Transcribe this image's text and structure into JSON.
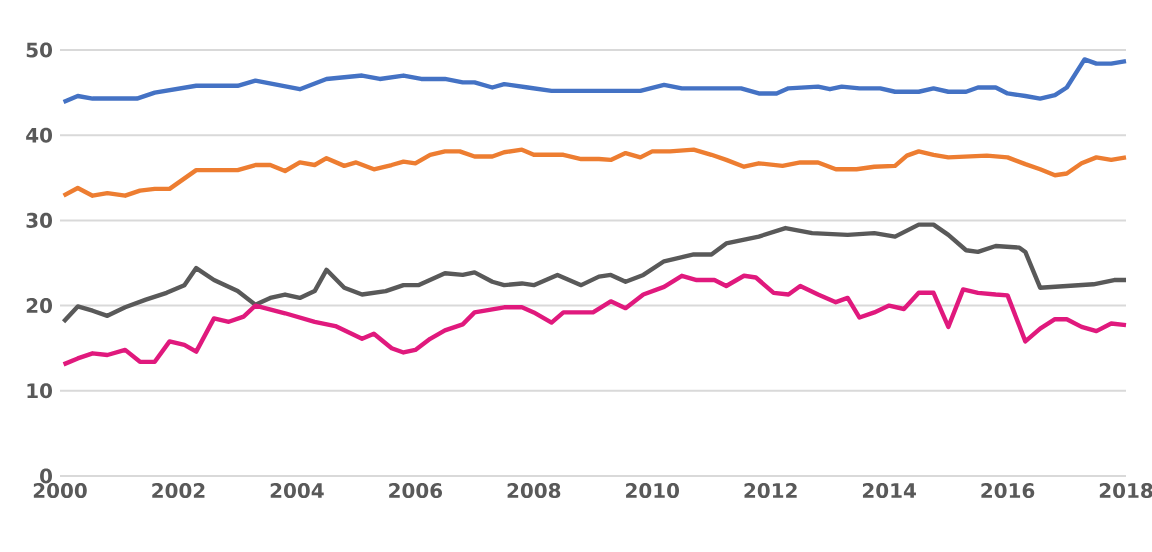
{
  "chart_data": {
    "type": "line",
    "xlim": [
      2000,
      2018
    ],
    "ylim": [
      0,
      50
    ],
    "xticks": [
      2000,
      2002,
      2004,
      2006,
      2008,
      2010,
      2012,
      2014,
      2016,
      2018
    ],
    "yticks": [
      0,
      10,
      20,
      30,
      40,
      50
    ],
    "grid": "y",
    "marker": "none",
    "line_style": "solid",
    "series": [
      {
        "color": "#4472c4",
        "x": [
          2000.06,
          2000.3,
          2000.55,
          2001.3,
          2001.6,
          2002.3,
          2003.0,
          2003.3,
          2004.05,
          2004.5,
          2005.1,
          2005.4,
          2005.8,
          2006.1,
          2006.5,
          2006.8,
          2007.0,
          2007.3,
          2007.5,
          2007.9,
          2008.3,
          2009.1,
          2009.8,
          2010.2,
          2010.5,
          2011.5,
          2011.8,
          2012.1,
          2012.3,
          2012.8,
          2013.0,
          2013.2,
          2013.5,
          2013.85,
          2014.1,
          2014.5,
          2014.75,
          2015.0,
          2015.3,
          2015.5,
          2015.8,
          2016.0,
          2016.3,
          2016.55,
          2016.8,
          2017.0,
          2017.3,
          2017.5,
          2017.75,
          2018.0
        ],
        "values": [
          43.9,
          44.6,
          44.3,
          44.3,
          45.0,
          45.8,
          45.8,
          46.4,
          45.4,
          46.6,
          47.0,
          46.6,
          47.0,
          46.6,
          46.6,
          46.2,
          46.2,
          45.6,
          46.0,
          45.6,
          45.2,
          45.2,
          45.2,
          45.9,
          45.5,
          45.5,
          44.9,
          44.9,
          45.5,
          45.7,
          45.4,
          45.7,
          45.5,
          45.5,
          45.1,
          45.1,
          45.5,
          45.1,
          45.1,
          45.6,
          45.6,
          44.9,
          44.6,
          44.3,
          44.7,
          45.6,
          48.9,
          48.4,
          48.4,
          48.7
        ]
      },
      {
        "color": "#ed7d31",
        "x": [
          2000.06,
          2000.3,
          2000.55,
          2000.8,
          2001.1,
          2001.35,
          2001.6,
          2001.85,
          2002.3,
          2003.0,
          2003.3,
          2003.55,
          2003.8,
          2004.05,
          2004.3,
          2004.5,
          2004.8,
          2005.0,
          2005.3,
          2005.6,
          2005.8,
          2006.0,
          2006.25,
          2006.5,
          2006.75,
          2007.0,
          2007.3,
          2007.5,
          2007.8,
          2008.0,
          2008.5,
          2008.8,
          2009.1,
          2009.3,
          2009.55,
          2009.8,
          2010.0,
          2010.3,
          2010.7,
          2011.0,
          2011.25,
          2011.55,
          2011.8,
          2012.2,
          2012.5,
          2012.8,
          2013.1,
          2013.45,
          2013.75,
          2014.1,
          2014.3,
          2014.5,
          2014.75,
          2015.0,
          2015.65,
          2016.0,
          2016.3,
          2016.55,
          2016.8,
          2017.0,
          2017.25,
          2017.5,
          2017.75,
          2018.0
        ],
        "values": [
          32.9,
          33.8,
          32.9,
          33.2,
          32.9,
          33.5,
          33.7,
          33.7,
          35.9,
          35.9,
          36.5,
          36.5,
          35.8,
          36.8,
          36.5,
          37.3,
          36.4,
          36.8,
          36.0,
          36.5,
          36.9,
          36.7,
          37.7,
          38.1,
          38.1,
          37.5,
          37.5,
          38.0,
          38.3,
          37.7,
          37.7,
          37.2,
          37.2,
          37.1,
          37.9,
          37.4,
          38.1,
          38.1,
          38.3,
          37.7,
          37.1,
          36.3,
          36.7,
          36.4,
          36.8,
          36.8,
          36.0,
          36.0,
          36.3,
          36.4,
          37.6,
          38.1,
          37.7,
          37.4,
          37.6,
          37.4,
          36.6,
          36.0,
          35.3,
          35.5,
          36.7,
          37.4,
          37.1,
          37.4
        ]
      },
      {
        "color": "#595959",
        "x": [
          2000.06,
          2000.3,
          2000.55,
          2000.8,
          2001.1,
          2001.45,
          2001.8,
          2002.1,
          2002.3,
          2002.6,
          2003.0,
          2003.3,
          2003.55,
          2003.8,
          2004.05,
          2004.3,
          2004.5,
          2004.8,
          2005.1,
          2005.5,
          2005.8,
          2006.05,
          2006.5,
          2006.8,
          2007.0,
          2007.3,
          2007.5,
          2007.8,
          2008.0,
          2008.4,
          2008.8,
          2009.1,
          2009.3,
          2009.55,
          2009.85,
          2010.2,
          2010.7,
          2011.0,
          2011.25,
          2011.8,
          2012.25,
          2012.7,
          2013.3,
          2013.75,
          2014.1,
          2014.5,
          2014.75,
          2015.0,
          2015.3,
          2015.5,
          2015.8,
          2016.2,
          2016.3,
          2016.55,
          2017.0,
          2017.45,
          2017.8,
          2018.0
        ],
        "values": [
          18.1,
          19.9,
          19.4,
          18.8,
          19.8,
          20.7,
          21.5,
          22.4,
          24.4,
          23.0,
          21.7,
          20.1,
          20.9,
          21.3,
          20.9,
          21.7,
          24.2,
          22.1,
          21.3,
          21.7,
          22.4,
          22.4,
          23.8,
          23.6,
          23.9,
          22.8,
          22.4,
          22.6,
          22.4,
          23.6,
          22.4,
          23.4,
          23.6,
          22.8,
          23.6,
          25.2,
          26.0,
          26.0,
          27.3,
          28.1,
          29.1,
          28.5,
          28.3,
          28.5,
          28.1,
          29.5,
          29.5,
          28.3,
          26.5,
          26.3,
          27.0,
          26.8,
          26.3,
          22.1,
          22.3,
          22.5,
          23.0,
          23.0
        ]
      },
      {
        "color": "#e0197d",
        "x": [
          2000.06,
          2000.3,
          2000.55,
          2000.8,
          2001.1,
          2001.35,
          2001.6,
          2001.85,
          2002.1,
          2002.3,
          2002.6,
          2002.85,
          2003.1,
          2003.3,
          2003.8,
          2004.3,
          2004.65,
          2005.1,
          2005.3,
          2005.6,
          2005.8,
          2006.0,
          2006.25,
          2006.5,
          2006.8,
          2007.0,
          2007.5,
          2007.8,
          2008.0,
          2008.3,
          2008.5,
          2009.0,
          2009.3,
          2009.55,
          2009.85,
          2010.2,
          2010.5,
          2010.75,
          2011.05,
          2011.25,
          2011.55,
          2011.75,
          2012.05,
          2012.3,
          2012.5,
          2012.8,
          2013.1,
          2013.3,
          2013.5,
          2013.75,
          2014.0,
          2014.25,
          2014.5,
          2014.75,
          2015.0,
          2015.25,
          2015.5,
          2015.8,
          2016.0,
          2016.3,
          2016.55,
          2016.8,
          2017.0,
          2017.25,
          2017.5,
          2017.75,
          2018.0
        ],
        "values": [
          13.1,
          13.8,
          14.4,
          14.2,
          14.8,
          13.4,
          13.4,
          15.8,
          15.4,
          14.6,
          18.5,
          18.1,
          18.7,
          20.0,
          19.1,
          18.1,
          17.6,
          16.1,
          16.7,
          15.0,
          14.5,
          14.8,
          16.1,
          17.1,
          17.8,
          19.2,
          19.8,
          19.8,
          19.2,
          18.0,
          19.2,
          19.2,
          20.5,
          19.7,
          21.3,
          22.2,
          23.5,
          23.0,
          23.0,
          22.3,
          23.5,
          23.3,
          21.5,
          21.3,
          22.3,
          21.3,
          20.4,
          20.9,
          18.6,
          19.2,
          20.0,
          19.6,
          21.5,
          21.5,
          17.5,
          21.9,
          21.5,
          21.3,
          21.2,
          15.8,
          17.3,
          18.4,
          18.4,
          17.5,
          17.0,
          17.9,
          17.7
        ]
      }
    ]
  }
}
